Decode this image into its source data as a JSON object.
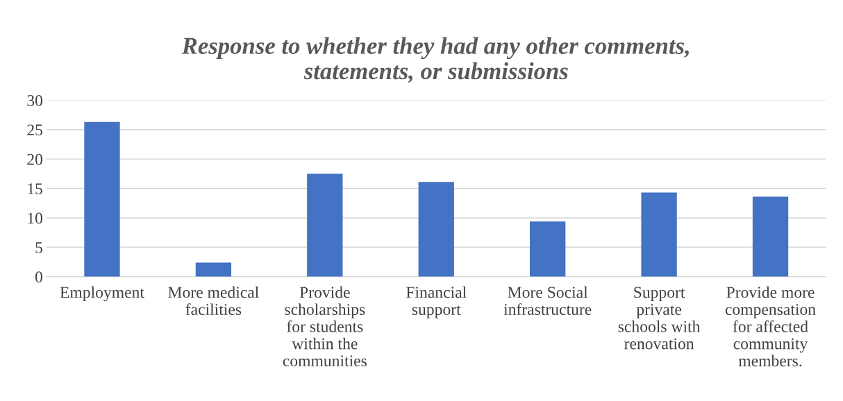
{
  "chart_data": {
    "type": "bar",
    "title": "Response to whether they had any other comments,\nstatements, or submissions",
    "categories": [
      "Employment",
      "More medical\nfacilities",
      "Provide\nscholarships\nfor students\nwithin the\ncommunities",
      "Financial\nsupport",
      "More Social\ninfrastructure",
      "Support\nprivate\nschools with\nrenovation",
      "Provide more\ncompensation\nfor affected\ncommunity\nmembers."
    ],
    "values": [
      26.3,
      2.4,
      17.5,
      16.1,
      9.4,
      14.3,
      13.6
    ],
    "color": "#4472c4",
    "ylim": [
      0,
      30
    ],
    "yticks": [
      0,
      5,
      10,
      15,
      20,
      25,
      30
    ],
    "grid": "y",
    "legend": false
  }
}
